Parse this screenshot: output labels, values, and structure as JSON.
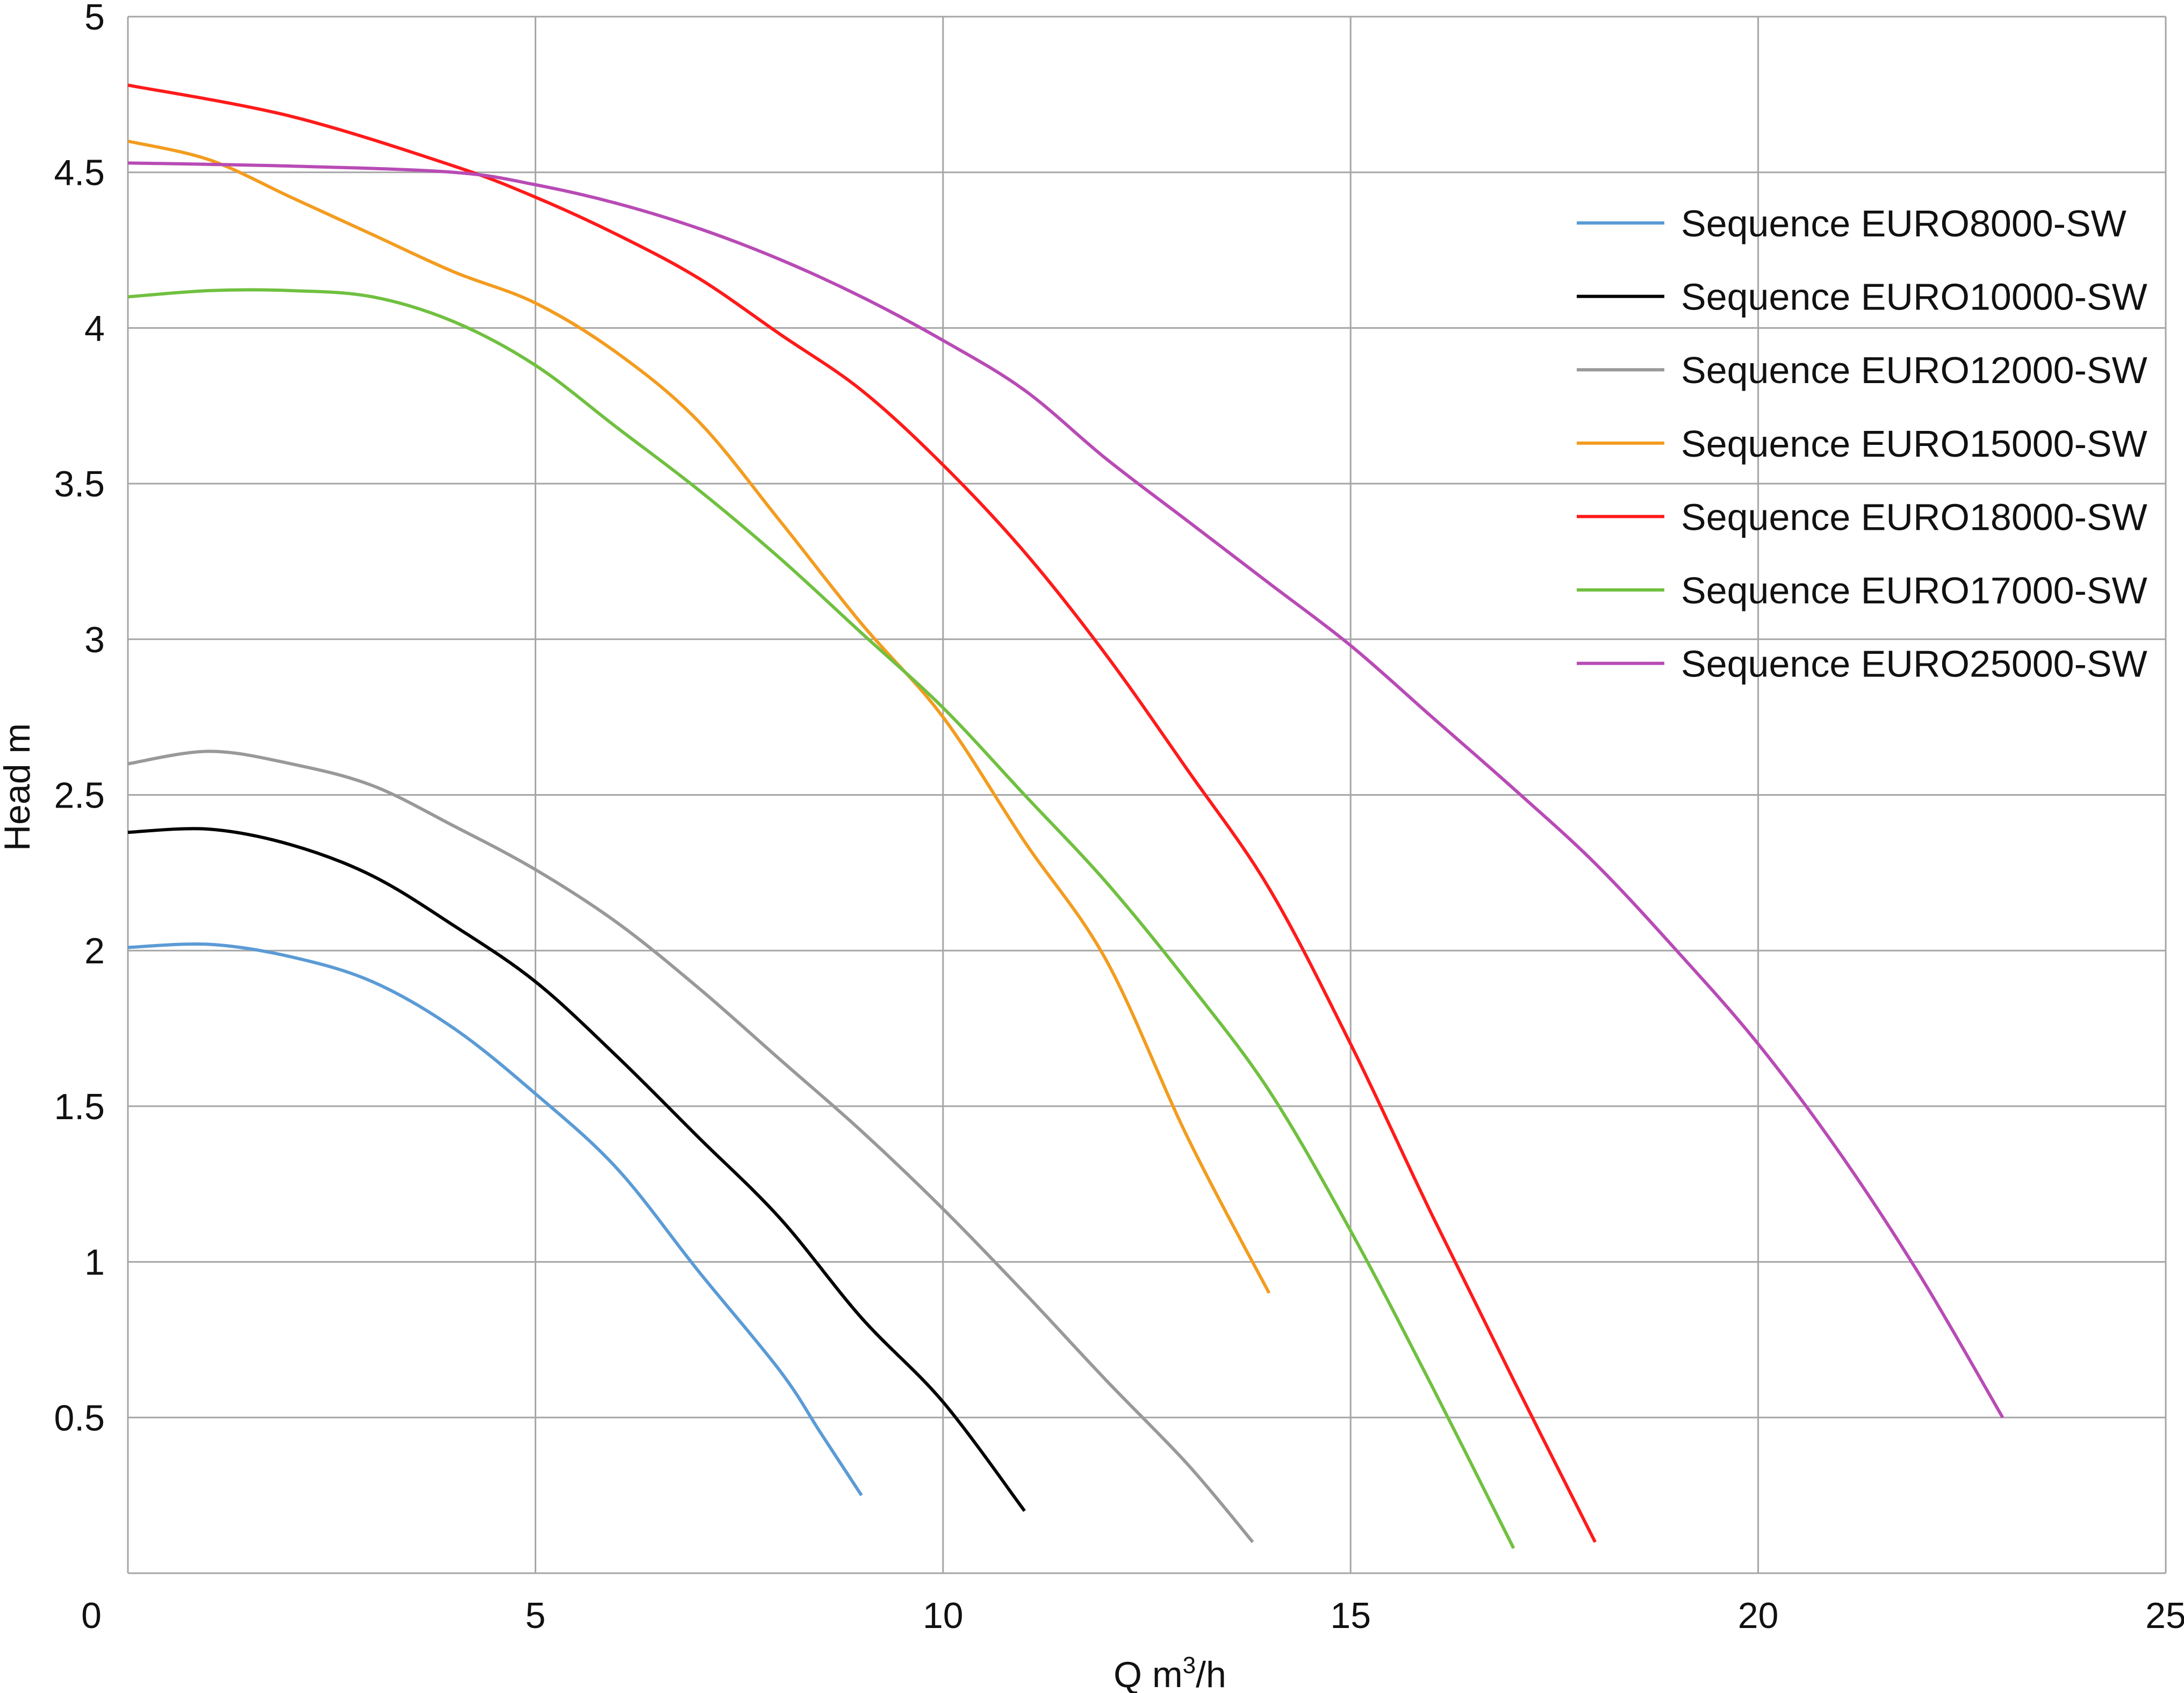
{
  "chart_data": {
    "type": "line",
    "title": "",
    "xlabel": "Q m",
    "xlabel_sup": "3",
    "xlabel_suffix": "/h",
    "ylabel": "Head m",
    "xlim": [
      0,
      25
    ],
    "ylim": [
      0,
      5
    ],
    "xticks": [
      "0",
      "5",
      "10",
      "15",
      "20",
      "25"
    ],
    "yticks": [
      "0.5",
      "1",
      "1.5",
      "2",
      "2.5",
      "3",
      "3.5",
      "4",
      "4.5",
      "5"
    ],
    "grid": true,
    "legend_position": "top-right",
    "series": [
      {
        "name": "Sequence EURO8000-SW",
        "color": "#5B9BD5",
        "x": [
          0,
          1,
          2,
          3,
          4,
          5,
          6,
          7,
          8,
          8.5,
          9
        ],
        "y": [
          2.01,
          2.02,
          1.98,
          1.9,
          1.75,
          1.54,
          1.3,
          0.97,
          0.65,
          0.45,
          0.25
        ]
      },
      {
        "name": "Sequence EURO10000-SW",
        "color": "#000000",
        "x": [
          0,
          1,
          2,
          3,
          4,
          5,
          6,
          7,
          8,
          9,
          10,
          11
        ],
        "y": [
          2.38,
          2.39,
          2.34,
          2.24,
          2.08,
          1.9,
          1.66,
          1.4,
          1.14,
          0.82,
          0.55,
          0.2
        ]
      },
      {
        "name": "Sequence EURO12000-SW",
        "color": "#999999",
        "x": [
          0,
          1,
          2,
          3,
          4,
          5,
          6,
          7,
          8,
          9,
          10,
          11,
          12,
          13,
          13.8
        ],
        "y": [
          2.6,
          2.64,
          2.6,
          2.53,
          2.4,
          2.26,
          2.09,
          1.88,
          1.65,
          1.42,
          1.17,
          0.9,
          0.62,
          0.35,
          0.1
        ]
      },
      {
        "name": "Sequence EURO15000-SW",
        "color": "#F39C1F",
        "x": [
          0,
          1,
          2,
          3,
          4,
          5,
          6,
          7,
          8,
          9,
          10,
          11,
          12,
          13,
          14
        ],
        "y": [
          4.6,
          4.54,
          4.42,
          4.3,
          4.18,
          4.08,
          3.92,
          3.7,
          3.38,
          3.05,
          2.75,
          2.35,
          1.97,
          1.4,
          0.9
        ]
      },
      {
        "name": "Sequence EURO18000-SW",
        "color": "#FF1A1A",
        "x": [
          0,
          2,
          4,
          5,
          6,
          7,
          8,
          9,
          10,
          11,
          12,
          13,
          14,
          15,
          16,
          17,
          18
        ],
        "y": [
          4.78,
          4.68,
          4.52,
          4.42,
          4.3,
          4.16,
          3.98,
          3.8,
          3.56,
          3.28,
          2.95,
          2.58,
          2.2,
          1.7,
          1.15,
          0.62,
          0.1
        ]
      },
      {
        "name": "Sequence EURO17000-SW",
        "color": "#70C040",
        "x": [
          0,
          1,
          2,
          3,
          4,
          5,
          6,
          7,
          8,
          9,
          10,
          11,
          12,
          13,
          14,
          15,
          16,
          17
        ],
        "y": [
          4.1,
          4.12,
          4.12,
          4.1,
          4.02,
          3.88,
          3.68,
          3.48,
          3.26,
          3.02,
          2.78,
          2.5,
          2.22,
          1.9,
          1.55,
          1.1,
          0.6,
          0.08
        ]
      },
      {
        "name": "Sequence EURO25000-SW",
        "color": "#B84BB5",
        "x": [
          0,
          2,
          4,
          5,
          6,
          7,
          8,
          9,
          10,
          11,
          12,
          13,
          14,
          15,
          16,
          17,
          18,
          19,
          20,
          21,
          22,
          23
        ],
        "y": [
          4.53,
          4.52,
          4.5,
          4.46,
          4.4,
          4.32,
          4.22,
          4.1,
          3.96,
          3.8,
          3.58,
          3.38,
          3.18,
          2.98,
          2.75,
          2.52,
          2.28,
          2.0,
          1.7,
          1.35,
          0.95,
          0.5
        ]
      }
    ]
  }
}
